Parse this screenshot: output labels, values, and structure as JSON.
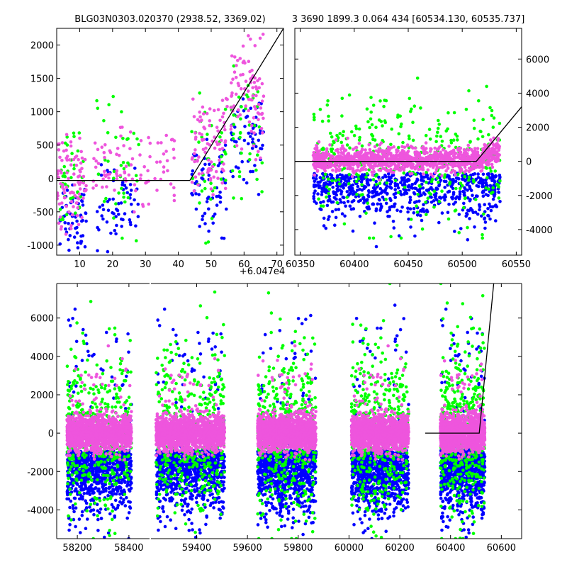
{
  "chart_data": [
    {
      "type": "scatter",
      "title": "BLG03N0303.020370 (2938.52, 3369.02)",
      "xlim": [
        3,
        72
      ],
      "ylim": [
        -1150,
        2250
      ],
      "x_ticks": [
        10,
        20,
        30,
        40,
        50,
        60,
        70
      ],
      "y_ticks": [
        -1000,
        -500,
        0,
        500,
        1000,
        1500,
        2000
      ],
      "x_offset_label": "+6.047e4",
      "y_axis_side": "left",
      "model_line": {
        "x": [
          3,
          43.5,
          72
        ],
        "y": [
          -30,
          -30,
          2250
        ]
      },
      "series": [
        {
          "color": "#0000ff",
          "clusters": [
            {
              "x": [
                4,
                12
              ],
              "y": [
                -1150,
                100
              ]
            },
            {
              "x": [
                15,
                28
              ],
              "y": [
                -1150,
                300
              ]
            },
            {
              "x": [
                44,
                55
              ],
              "y": [
                -900,
                600
              ]
            },
            {
              "x": [
                56,
                66
              ],
              "y": [
                -300,
                1500
              ]
            }
          ]
        },
        {
          "color": "#00ff00",
          "clusters": [
            {
              "x": [
                4,
                12
              ],
              "y": [
                -1100,
                700
              ]
            },
            {
              "x": [
                15,
                28
              ],
              "y": [
                -1000,
                1300
              ]
            },
            {
              "x": [
                44,
                55
              ],
              "y": [
                -1000,
                1400
              ]
            },
            {
              "x": [
                56,
                66
              ],
              "y": [
                -500,
                1700
              ]
            }
          ]
        },
        {
          "color": "#ee55dd",
          "clusters": [
            {
              "x": [
                3,
                12
              ],
              "y": [
                -900,
                700
              ]
            },
            {
              "x": [
                14,
                40
              ],
              "y": [
                -600,
                800
              ]
            },
            {
              "x": [
                44,
                55
              ],
              "y": [
                -300,
                1300
              ]
            },
            {
              "x": [
                56,
                66
              ],
              "y": [
                200,
                2250
              ]
            }
          ]
        }
      ]
    },
    {
      "type": "scatter",
      "title": "3 3690 1899.3 0.064 434 [60534.130, 60535.737]",
      "xlim": [
        60345,
        60555
      ],
      "ylim": [
        -5500,
        7800
      ],
      "x_ticks": [
        60350,
        60400,
        60450,
        60500,
        60550
      ],
      "y_ticks": [
        -4000,
        -2000,
        0,
        2000,
        4000,
        6000
      ],
      "y_axis_side": "right",
      "model_line": {
        "x": [
          60345,
          60513,
          60555
        ],
        "y": [
          0,
          0,
          3200
        ]
      },
      "series": [
        {
          "color": "#0000ff",
          "clusters": [
            {
              "x": [
                60362,
                60535
              ],
              "y": [
                -5000,
                700
              ]
            }
          ]
        },
        {
          "color": "#00ff00",
          "clusters": [
            {
              "x": [
                60362,
                60535
              ],
              "y": [
                -4500,
                6500
              ]
            }
          ]
        },
        {
          "color": "#ee55dd",
          "clusters": [
            {
              "x": [
                60362,
                60535
              ],
              "y": [
                -1500,
                2500
              ]
            }
          ]
        }
      ]
    },
    {
      "type": "scatter",
      "title": "",
      "ylim": [
        -5500,
        7800
      ],
      "y_ticks": [
        -4000,
        -2000,
        0,
        2000,
        4000,
        6000
      ],
      "y_axis_side": "left",
      "broken_x_axis": true,
      "segments": [
        {
          "xlim": [
            58120,
            58480
          ],
          "x_ticks": [
            58200,
            58400
          ],
          "seasons": [
            [
              58160,
              58410
            ]
          ]
        },
        {
          "xlim": [
            59220,
            60680
          ],
          "x_ticks": [
            59400,
            59600,
            59800,
            60000,
            60200,
            60400,
            60600
          ],
          "seasons": [
            [
              59240,
              59510
            ],
            [
              59640,
              59870
            ],
            [
              60010,
              60235
            ],
            [
              60360,
              60535
            ]
          ]
        }
      ],
      "model_line": {
        "x": [
          60300,
          60513,
          60570
        ],
        "y": [
          0,
          0,
          7800
        ]
      },
      "series": [
        {
          "color": "#0000ff",
          "y_range": [
            -5300,
            7000
          ]
        },
        {
          "color": "#00ff00",
          "y_range": [
            -5400,
            7800
          ]
        },
        {
          "color": "#ee55dd",
          "y_range": [
            -2800,
            4000
          ]
        }
      ]
    }
  ]
}
